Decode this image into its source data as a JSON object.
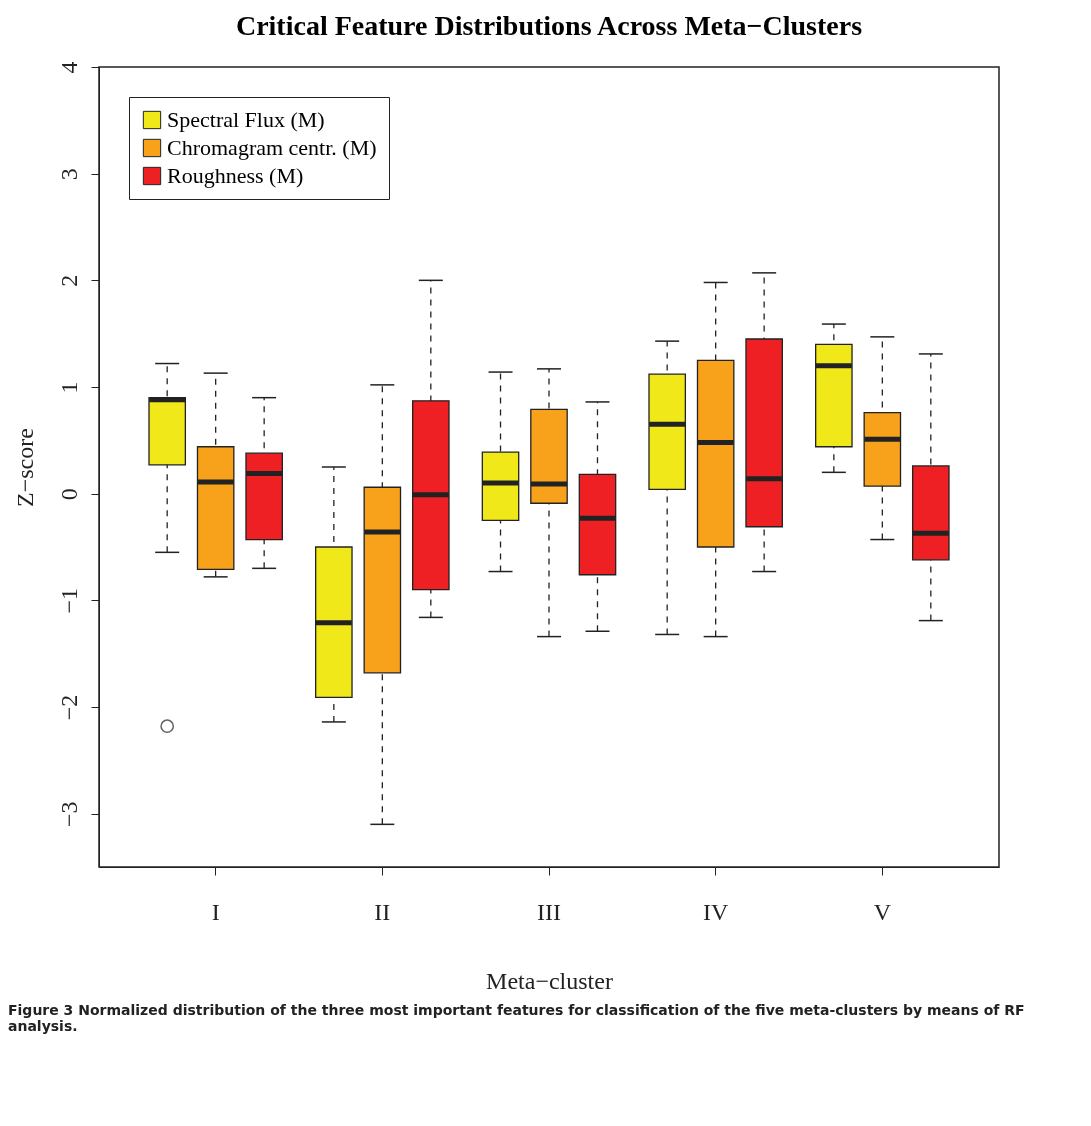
{
  "chart_data": {
    "type": "box",
    "title": "Critical Feature Distributions Across Meta−Clusters",
    "xlabel": "Meta−cluster",
    "ylabel": "Z−score",
    "categories": [
      "I",
      "II",
      "III",
      "IV",
      "V"
    ],
    "ylim": [
      -3.5,
      4
    ],
    "yticks": [
      -3,
      -2,
      -1,
      0,
      1,
      2,
      3,
      4
    ],
    "grid": false,
    "legend": "top left",
    "series": [
      {
        "name": "Spectral Flux (M)",
        "color": "#f0e818",
        "boxes": [
          {
            "low": -0.55,
            "q1": 0.27,
            "median": 0.88,
            "q3": 0.9,
            "high": 1.22,
            "outliers": [
              -2.18
            ]
          },
          {
            "low": -2.14,
            "q1": -1.91,
            "median": -1.21,
            "q3": -0.5,
            "high": 0.25
          },
          {
            "low": -0.73,
            "q1": -0.25,
            "median": 0.1,
            "q3": 0.39,
            "high": 1.14
          },
          {
            "low": -1.32,
            "q1": 0.04,
            "median": 0.65,
            "q3": 1.12,
            "high": 1.43
          },
          {
            "low": 0.2,
            "q1": 0.44,
            "median": 1.2,
            "q3": 1.4,
            "high": 1.59
          }
        ]
      },
      {
        "name": "Chromagram centr. (M)",
        "color": "#f8a21c",
        "boxes": [
          {
            "low": -0.78,
            "q1": -0.71,
            "median": 0.11,
            "q3": 0.44,
            "high": 1.13
          },
          {
            "low": -3.1,
            "q1": -1.68,
            "median": -0.36,
            "q3": 0.06,
            "high": 1.02
          },
          {
            "low": -1.34,
            "q1": -0.09,
            "median": 0.09,
            "q3": 0.79,
            "high": 1.17
          },
          {
            "low": -1.34,
            "q1": -0.5,
            "median": 0.48,
            "q3": 1.25,
            "high": 1.98
          },
          {
            "low": -0.43,
            "q1": 0.07,
            "median": 0.51,
            "q3": 0.76,
            "high": 1.47
          }
        ]
      },
      {
        "name": "Roughness (M)",
        "color": "#ee2024",
        "boxes": [
          {
            "low": -0.7,
            "q1": -0.43,
            "median": 0.19,
            "q3": 0.38,
            "high": 0.9
          },
          {
            "low": -1.16,
            "q1": -0.9,
            "median": -0.01,
            "q3": 0.87,
            "high": 2.0
          },
          {
            "low": -1.29,
            "q1": -0.76,
            "median": -0.23,
            "q3": 0.18,
            "high": 0.86
          },
          {
            "low": -0.73,
            "q1": -0.31,
            "median": 0.14,
            "q3": 1.45,
            "high": 2.07
          },
          {
            "low": -1.19,
            "q1": -0.62,
            "median": -0.37,
            "q3": 0.26,
            "high": 1.31
          }
        ]
      }
    ],
    "annotations": [
      "Figure 3 Normalized distribution of the three most important features for classification of the five meta-clusters by means of RF analysis."
    ]
  }
}
